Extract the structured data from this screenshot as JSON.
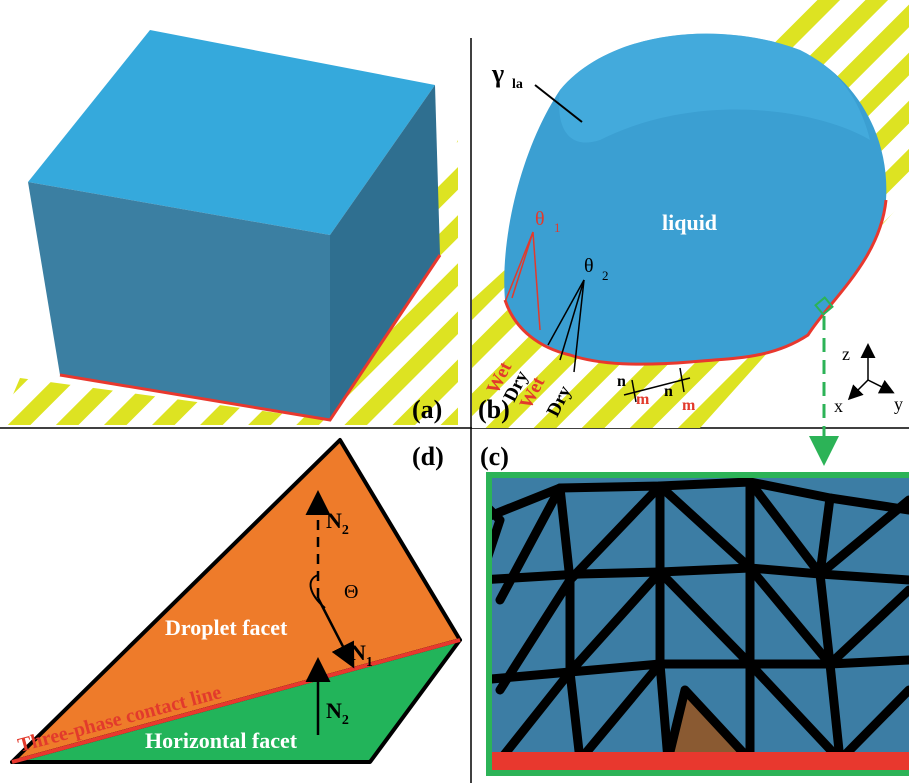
{
  "panel_a": {
    "label": "(a)"
  },
  "panel_b": {
    "label": "(b)",
    "gamma": "γ",
    "gamma_sub": "la",
    "liquid": "liquid",
    "theta": "θ",
    "theta1_sub": "1",
    "theta2_sub": "2",
    "wet_1": "Wet",
    "dry_1": "Dry",
    "wet_2": "Wet",
    "dry_2": "Dry",
    "n_1": "n",
    "m_1": "m",
    "n_2": "n",
    "m_2": "m",
    "axis_z": "z",
    "axis_x": "x",
    "axis_y": "y"
  },
  "panel_c": {
    "label": "(c)"
  },
  "panel_d": {
    "label": "(d)",
    "N": "N",
    "n2_sub_top": "2",
    "n1_sub": "1",
    "n2_sub_bottom": "2",
    "big_theta": "Θ",
    "droplet_facet": "Droplet facet",
    "contact_line": "Three-phase contact line",
    "horizontal_facet": "Horizontal facet"
  },
  "colors": {
    "cube_top": "#35a9dc",
    "cube_front": "#3b7fa2",
    "cube_side": "#2f6f90",
    "stripe_yellow": "#dde322",
    "contact_red": "#e8382e",
    "droplet_orange": "#ee7b2a",
    "horizontal_green": "#22b45a",
    "mesh_blue": "#3c7da4",
    "frame_green": "#2cb357",
    "label_red": "#e23a2c"
  }
}
